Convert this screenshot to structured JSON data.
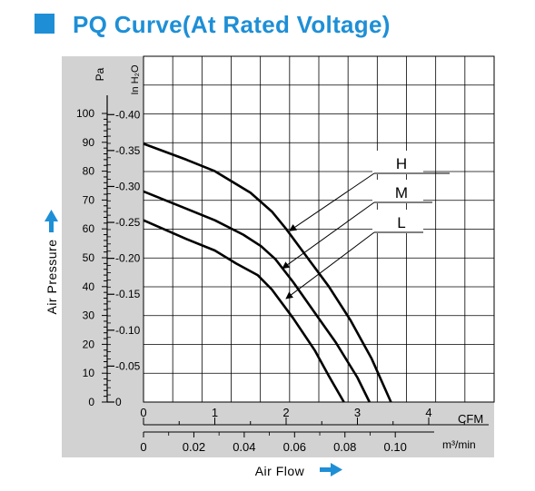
{
  "header": {
    "title": "PQ Curve(At Rated Voltage)",
    "accent_color": "#1e8fd6"
  },
  "chart_data": {
    "type": "line",
    "title": "PQ Curve(At Rated Voltage)",
    "ylabel": "Air Pressure",
    "xlabel": "Air Flow",
    "y_unit_primary": "Pa",
    "y_unit_secondary": "In H₂O",
    "x_unit_primary": "CFM",
    "x_unit_secondary": "m³/min",
    "xlim": [
      0,
      4.9
    ],
    "ylim": [
      0,
      100
    ],
    "y_ticks_primary": [
      "0",
      "10",
      "20",
      "30",
      "40",
      "50",
      "60",
      "70",
      "80",
      "90",
      "100"
    ],
    "y_ticks_secondary": [
      "0",
      "0.05",
      "0.10",
      "0.15",
      "0.20",
      "0.25",
      "0.30",
      "0.35",
      "0.40"
    ],
    "x_ticks_primary": [
      "0",
      "1",
      "2",
      "3",
      "4"
    ],
    "x_ticks_secondary": [
      "0",
      "0.02",
      "0.04",
      "0.06",
      "0.08",
      "0.10"
    ],
    "grid": true,
    "series": [
      {
        "name": "H",
        "color": "#000000",
        "x": [
          0,
          0.6,
          1.0,
          1.5,
          1.8,
          2.0,
          2.3,
          2.6,
          2.9,
          3.2,
          3.47
        ],
        "y": [
          89.5,
          84,
          80,
          72.5,
          66,
          60,
          50,
          40,
          28.5,
          15,
          0
        ]
      },
      {
        "name": "M",
        "color": "#000000",
        "x": [
          0,
          0.6,
          1.0,
          1.4,
          1.65,
          1.85,
          2.1,
          2.4,
          2.7,
          3.0,
          3.17
        ],
        "y": [
          73,
          67,
          63,
          58,
          54,
          49.5,
          41.5,
          31,
          20.5,
          8.5,
          0
        ]
      },
      {
        "name": "L",
        "color": "#000000",
        "x": [
          0,
          0.6,
          1.0,
          1.3,
          1.6,
          1.8,
          2.1,
          2.4,
          2.6,
          2.81
        ],
        "y": [
          63,
          56.5,
          52.5,
          48,
          44,
          39,
          29,
          18,
          9,
          0
        ]
      }
    ],
    "legend": {
      "placement": "top-right",
      "labels": [
        "H",
        "M",
        "L"
      ]
    }
  }
}
